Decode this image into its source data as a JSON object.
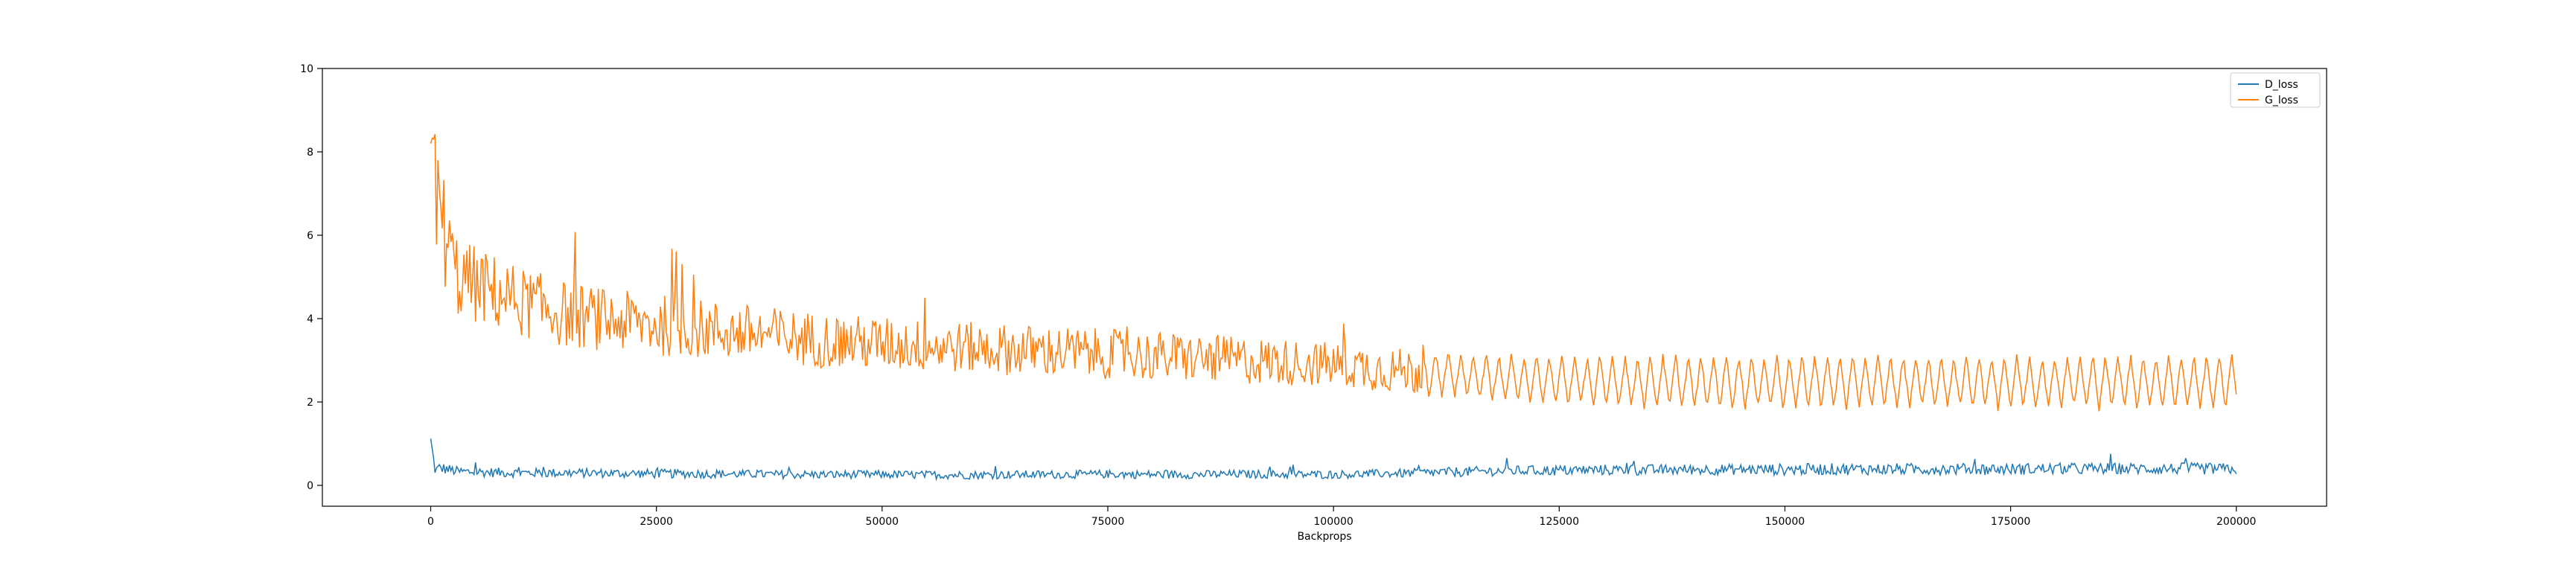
{
  "chart_data": {
    "type": "line",
    "title": "",
    "xlabel": "Backprops",
    "ylabel": "",
    "xlim": [
      -12000,
      210000
    ],
    "ylim": [
      -0.5,
      10
    ],
    "x_ticks": [
      0,
      25000,
      50000,
      75000,
      100000,
      125000,
      150000,
      175000,
      200000
    ],
    "y_ticks": [
      0,
      2,
      4,
      6,
      8,
      10
    ],
    "grid": false,
    "legend_position": "upper right",
    "series": [
      {
        "name": "D_loss",
        "color": "#1f77b4",
        "x": [
          0,
          500,
          1000,
          2000,
          3000,
          5000,
          10000,
          15000,
          20000,
          25000,
          30000,
          35000,
          40000,
          45000,
          50000,
          55000,
          60000,
          65000,
          70000,
          75000,
          80000,
          85000,
          90000,
          95000,
          100000,
          105000,
          110000,
          115000,
          120000,
          125000,
          130000,
          135000,
          140000,
          145000,
          150000,
          155000,
          160000,
          165000,
          170000,
          175000,
          180000,
          185000,
          190000,
          195000,
          200000
        ],
        "values": [
          1.12,
          0.35,
          0.42,
          0.38,
          0.33,
          0.32,
          0.3,
          0.3,
          0.29,
          0.28,
          0.28,
          0.27,
          0.26,
          0.26,
          0.26,
          0.25,
          0.25,
          0.26,
          0.26,
          0.27,
          0.26,
          0.26,
          0.27,
          0.26,
          0.26,
          0.28,
          0.3,
          0.33,
          0.35,
          0.36,
          0.37,
          0.37,
          0.38,
          0.38,
          0.38,
          0.39,
          0.39,
          0.39,
          0.39,
          0.39,
          0.4,
          0.4,
          0.4,
          0.4,
          0.39
        ],
        "amplitude": [
          0,
          0.12,
          0.14,
          0.13,
          0.12,
          0.12,
          0.11,
          0.11,
          0.11,
          0.11,
          0.11,
          0.1,
          0.1,
          0.1,
          0.1,
          0.1,
          0.1,
          0.1,
          0.1,
          0.1,
          0.1,
          0.1,
          0.1,
          0.1,
          0.1,
          0.1,
          0.11,
          0.12,
          0.12,
          0.13,
          0.13,
          0.13,
          0.13,
          0.13,
          0.14,
          0.14,
          0.14,
          0.14,
          0.14,
          0.14,
          0.14,
          0.14,
          0.14,
          0.14,
          0.14
        ]
      },
      {
        "name": "G_loss",
        "color": "#ff7f0e",
        "x": [
          0,
          500,
          1000,
          2000,
          3000,
          5000,
          10000,
          15000,
          20000,
          25000,
          30000,
          35000,
          40000,
          45000,
          50000,
          55000,
          60000,
          65000,
          70000,
          75000,
          80000,
          85000,
          90000,
          95000,
          100000,
          105000,
          110000,
          115000,
          120000,
          125000,
          130000,
          135000,
          140000,
          145000,
          150000,
          155000,
          160000,
          165000,
          170000,
          175000,
          180000,
          185000,
          190000,
          195000,
          200000
        ],
        "values": [
          8.2,
          7.2,
          6.6,
          5.6,
          5.0,
          4.8,
          4.4,
          4.1,
          3.95,
          3.85,
          3.75,
          3.65,
          3.55,
          3.45,
          3.4,
          3.35,
          3.3,
          3.25,
          3.2,
          3.15,
          3.1,
          3.05,
          3.0,
          2.95,
          2.9,
          2.8,
          2.7,
          2.62,
          2.56,
          2.52,
          2.5,
          2.49,
          2.48,
          2.48,
          2.48,
          2.48,
          2.48,
          2.48,
          2.48,
          2.48,
          2.48,
          2.48,
          2.48,
          2.48,
          2.48
        ],
        "amplitude": [
          1.8,
          1.6,
          1.5,
          1.2,
          1.0,
          0.95,
          0.85,
          0.8,
          0.75,
          0.75,
          0.72,
          0.7,
          0.68,
          0.66,
          0.65,
          0.63,
          0.62,
          0.62,
          0.62,
          0.6,
          0.6,
          0.58,
          0.58,
          0.56,
          0.55,
          0.55,
          0.55,
          0.55,
          0.55,
          0.6,
          0.62,
          0.63,
          0.63,
          0.63,
          0.63,
          0.63,
          0.63,
          0.63,
          0.63,
          0.63,
          0.63,
          0.63,
          0.63,
          0.63,
          0.63
        ]
      }
    ]
  }
}
